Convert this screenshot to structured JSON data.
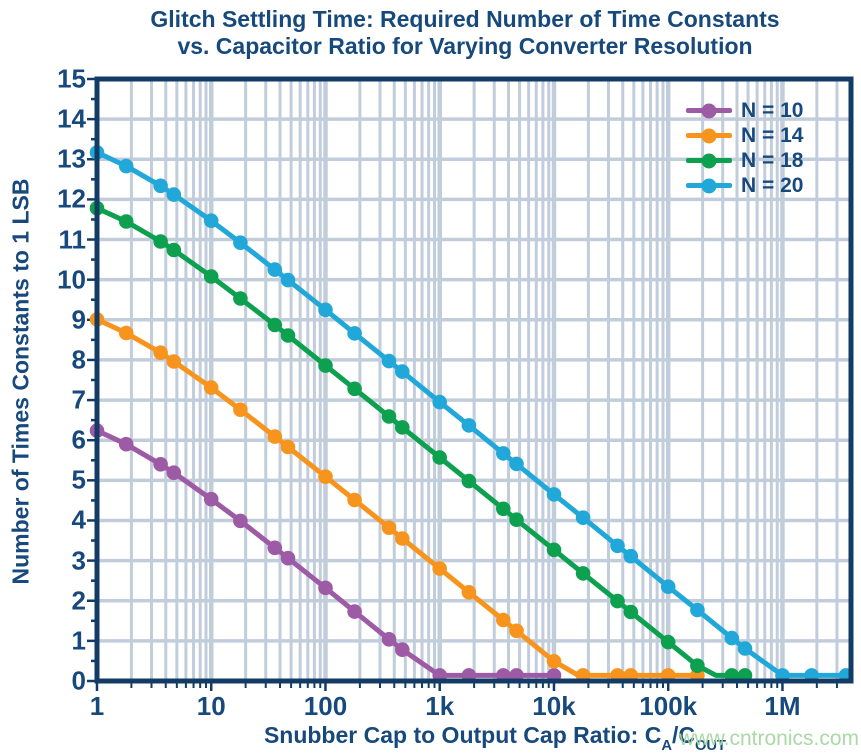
{
  "title": {
    "line1": "Glitch Settling Time: Required Number of Time Constants",
    "line2": "vs. Capacitor Ratio for Varying Converter Resolution"
  },
  "watermark": "www.cntronics.com",
  "colors": {
    "text_navy": "#17497C",
    "frame_navy": "#123C66",
    "gridline": "#C2CDDC",
    "background": "#FFFFFF",
    "series_purple": "#9C5BA4",
    "series_orange": "#F7941E",
    "series_green": "#0DA04F",
    "series_cyan": "#21A8D8",
    "watermark_green": "#A6D7A2"
  },
  "chart_data": {
    "type": "line",
    "title": "Glitch Settling Time: Required Number of Time Constants vs. Capacitor Ratio for Varying Converter Resolution",
    "xlabel_parts": {
      "prefix": "Snubber Cap to Output Cap Ratio: ",
      "c1": "C",
      "sub1": "A",
      "slash": "/",
      "c2": "C",
      "sub2": "OUT"
    },
    "ylabel": "Number of Times Constants to 1 LSB",
    "x_scale": "log",
    "x_range": [
      1,
      4000000
    ],
    "y_range": [
      0,
      15
    ],
    "grid": "on",
    "legend_position": "top-right",
    "x_ticks": [
      {
        "value": 1,
        "label": "1"
      },
      {
        "value": 10,
        "label": "10"
      },
      {
        "value": 100,
        "label": "100"
      },
      {
        "value": 1000,
        "label": "1k"
      },
      {
        "value": 10000,
        "label": "10k"
      },
      {
        "value": 100000,
        "label": "100k"
      },
      {
        "value": 1000000,
        "label": "1M"
      }
    ],
    "y_ticks": [
      0,
      1,
      2,
      3,
      4,
      5,
      6,
      7,
      8,
      9,
      10,
      11,
      12,
      13,
      14,
      15
    ],
    "relationship": "y = max(0, N*ln(2) - ln(1 + ratio))",
    "series": [
      {
        "label": "N = 10",
        "N": 10,
        "color": "#9C5BA4",
        "zero_crossing_r": 1023,
        "points": [
          [
            1,
            6.24
          ],
          [
            1.8,
            5.9
          ],
          [
            3.6,
            5.4
          ],
          [
            4.7,
            5.19
          ],
          [
            10,
            4.53
          ],
          [
            18,
            3.99
          ],
          [
            36,
            3.32
          ],
          [
            47,
            3.06
          ],
          [
            100,
            2.32
          ],
          [
            180,
            1.73
          ],
          [
            360,
            1.04
          ],
          [
            470,
            0.78
          ],
          [
            1000,
            0.02
          ],
          [
            1800,
            0
          ],
          [
            3600,
            0
          ],
          [
            4700,
            0
          ],
          [
            10000,
            0
          ]
        ]
      },
      {
        "label": "N = 14",
        "N": 14,
        "color": "#F7941E",
        "zero_crossing_r": 16383,
        "points": [
          [
            1,
            9.01
          ],
          [
            1.8,
            8.67
          ],
          [
            3.6,
            8.18
          ],
          [
            4.7,
            7.96
          ],
          [
            10,
            7.31
          ],
          [
            18,
            6.76
          ],
          [
            36,
            6.09
          ],
          [
            47,
            5.83
          ],
          [
            100,
            5.09
          ],
          [
            180,
            4.51
          ],
          [
            360,
            3.82
          ],
          [
            470,
            3.55
          ],
          [
            1000,
            2.8
          ],
          [
            1800,
            2.21
          ],
          [
            3600,
            1.52
          ],
          [
            4700,
            1.25
          ],
          [
            10000,
            0.49
          ],
          [
            18000,
            0
          ],
          [
            36000,
            0
          ],
          [
            47000,
            0
          ],
          [
            100000,
            0
          ],
          [
            180000,
            0
          ]
        ]
      },
      {
        "label": "N = 18",
        "N": 18,
        "color": "#0DA04F",
        "zero_crossing_r": 262143,
        "points": [
          [
            1,
            11.78
          ],
          [
            1.8,
            11.45
          ],
          [
            3.6,
            10.95
          ],
          [
            4.7,
            10.74
          ],
          [
            10,
            10.08
          ],
          [
            18,
            9.53
          ],
          [
            36,
            8.87
          ],
          [
            47,
            8.61
          ],
          [
            100,
            7.86
          ],
          [
            180,
            7.28
          ],
          [
            360,
            6.59
          ],
          [
            470,
            6.32
          ],
          [
            1000,
            5.57
          ],
          [
            1800,
            4.98
          ],
          [
            3600,
            4.29
          ],
          [
            4700,
            4.02
          ],
          [
            10000,
            3.27
          ],
          [
            18000,
            2.68
          ],
          [
            36000,
            1.99
          ],
          [
            47000,
            1.72
          ],
          [
            100000,
            0.97
          ],
          [
            180000,
            0.38
          ],
          [
            360000,
            0
          ],
          [
            470000,
            0
          ]
        ]
      },
      {
        "label": "N = 20",
        "N": 20,
        "color": "#21A8D8",
        "zero_crossing_r": 1048575,
        "points": [
          [
            1,
            13.17
          ],
          [
            1.8,
            12.83
          ],
          [
            3.6,
            12.34
          ],
          [
            4.7,
            12.12
          ],
          [
            10,
            11.47
          ],
          [
            18,
            10.92
          ],
          [
            36,
            10.25
          ],
          [
            47,
            9.99
          ],
          [
            100,
            9.25
          ],
          [
            180,
            8.66
          ],
          [
            360,
            7.97
          ],
          [
            470,
            7.71
          ],
          [
            1000,
            6.95
          ],
          [
            1800,
            6.37
          ],
          [
            3600,
            5.67
          ],
          [
            4700,
            5.41
          ],
          [
            10000,
            4.65
          ],
          [
            18000,
            4.07
          ],
          [
            36000,
            3.37
          ],
          [
            47000,
            3.11
          ],
          [
            100000,
            2.35
          ],
          [
            180000,
            1.77
          ],
          [
            360000,
            1.07
          ],
          [
            470000,
            0.81
          ],
          [
            1000000,
            0.05
          ],
          [
            1800000,
            0
          ],
          [
            3600000,
            0
          ]
        ]
      }
    ]
  }
}
